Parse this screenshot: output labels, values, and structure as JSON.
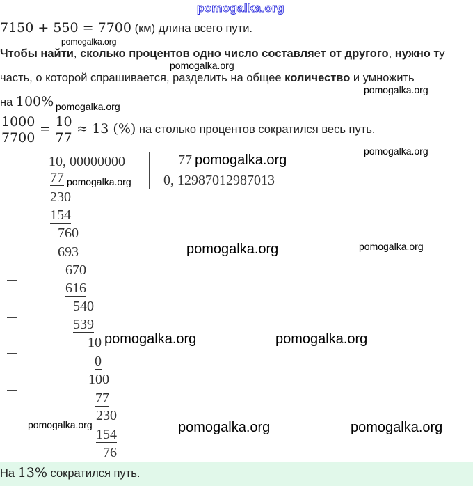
{
  "watermark": "pomogalka.org",
  "line1": {
    "math": "7150 + 550 = 7700",
    "text": " (км) длина всего пути."
  },
  "rule": {
    "bold1": "Чтобы найти",
    "plain1": ", ",
    "bold2": "сколько процентов одно число составляет от другого",
    "plain2": ", ",
    "bold3": "нужно",
    "plain3": " ту",
    "line2_plain": "часть, о которой спрашивается, разделить на общее ",
    "line2_bold": "количество",
    "line2_end": " и умножить",
    "line3_plain": "на ",
    "line3_math": "100%"
  },
  "calc": {
    "frac1_num": "1000",
    "frac1_den": "7700",
    "eq": "=",
    "frac2_num": "10",
    "frac2_den": "77",
    "approx": "≈ 13 (%)",
    "text": " на столько процентов сократился весь путь."
  },
  "division": {
    "dividend": "10, 00000000",
    "divisor": "77",
    "quotient": "0, 12987012987013",
    "steps": [
      "77",
      "230",
      "154",
      "760",
      "693",
      "670",
      "616",
      "540",
      "539",
      "10",
      "0",
      "100",
      "77",
      "230",
      "154",
      "76"
    ]
  },
  "answer": {
    "pre": "На ",
    "math": "13%",
    "post": " сократился путь."
  }
}
